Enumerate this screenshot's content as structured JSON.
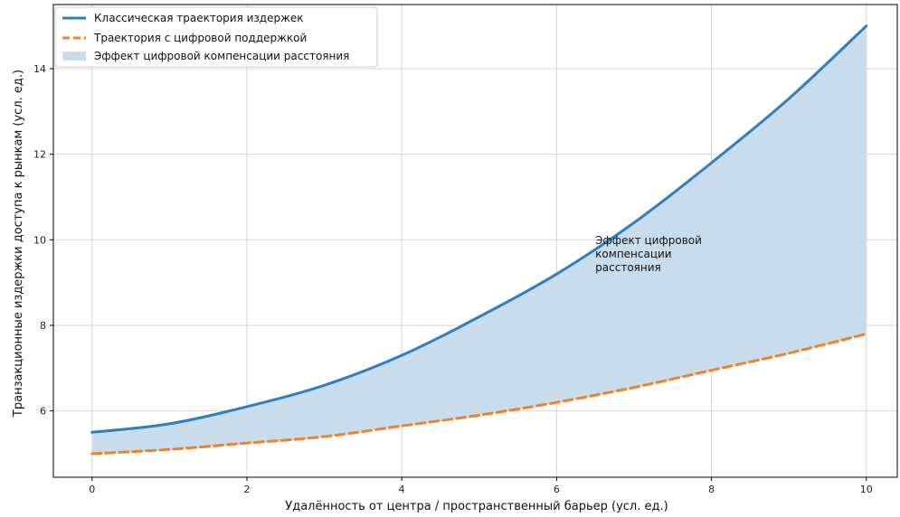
{
  "chart_data": {
    "type": "line",
    "title": "",
    "xlabel": "Удалённость от центра / пространственный барьер (усл. ед.)",
    "ylabel": "Транзакционные издержки доступа к рынкам (усл. ед.)",
    "xlim": [
      -0.5,
      10.4
    ],
    "ylim": [
      4.45,
      15.5
    ],
    "xticks": [
      0,
      2,
      4,
      6,
      8,
      10
    ],
    "yticks": [
      6,
      8,
      10,
      12,
      14
    ],
    "grid": true,
    "legend_position": "top-left",
    "series": [
      {
        "name": "Классическая траектория издержек",
        "style": "solid",
        "color": "#2f7fbf",
        "x": [
          0,
          1,
          2,
          3,
          4,
          5,
          6,
          7,
          8,
          9,
          10
        ],
        "y": [
          5.5,
          5.7,
          6.1,
          6.6,
          7.3,
          8.2,
          9.2,
          10.4,
          11.8,
          13.3,
          15.0
        ]
      },
      {
        "name": "Траектория с цифровой поддержкой",
        "style": "dashed",
        "color": "#f5802a",
        "x": [
          0,
          1,
          2,
          3,
          4,
          5,
          6,
          7,
          8,
          9,
          10
        ],
        "y": [
          5.0,
          5.1,
          5.25,
          5.4,
          5.65,
          5.9,
          6.2,
          6.55,
          6.95,
          7.35,
          7.8
        ]
      }
    ],
    "fill_between": {
      "name": "Эффект цифровой компенсации расстояния",
      "color": "#c9dcec",
      "lower_series": 1,
      "upper_series": 0
    },
    "annotations": [
      {
        "lines": [
          "Эффект цифровой",
          "компенсации",
          "расстояния"
        ],
        "x": 6.5,
        "y": 9.9
      }
    ]
  }
}
